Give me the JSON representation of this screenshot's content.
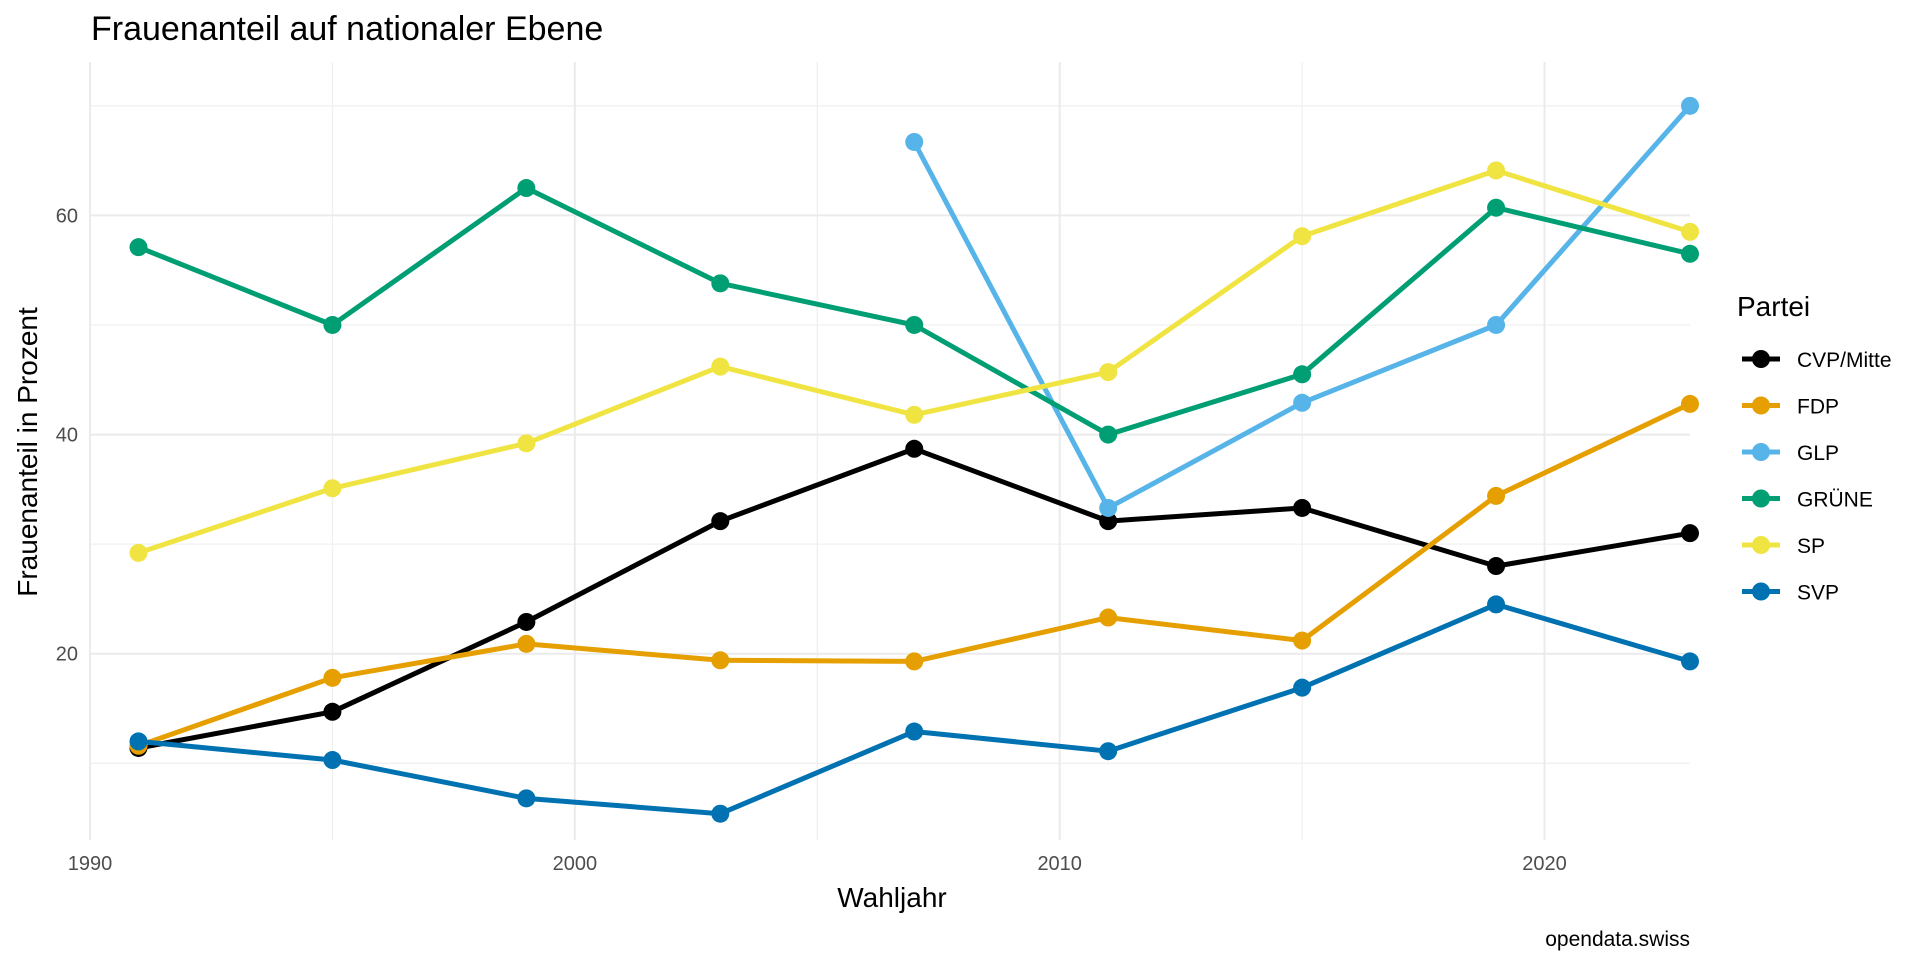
{
  "chart_data": {
    "type": "line",
    "title": "Frauenanteil auf nationaler Ebene",
    "xlabel": "Wahljahr",
    "ylabel": "Frauenanteil in Prozent",
    "caption": "opendata.swiss",
    "legend_title": "Partei",
    "legend_position": "right",
    "grid": true,
    "xlim": [
      1990,
      2023
    ],
    "ylim": [
      3,
      74
    ],
    "x_ticks": [
      1990,
      2000,
      2010,
      2020
    ],
    "y_ticks": [
      20,
      40,
      60
    ],
    "series": [
      {
        "name": "CVP/Mitte",
        "color": "#000000",
        "x": [
          1991,
          1995,
          1999,
          2003,
          2007,
          2011,
          2015,
          2019,
          2023
        ],
        "values": [
          11.4,
          14.7,
          22.9,
          32.1,
          38.7,
          32.1,
          33.3,
          28.0,
          31.0
        ]
      },
      {
        "name": "FDP",
        "color": "#E69F00",
        "x": [
          1991,
          1995,
          1999,
          2003,
          2007,
          2011,
          2015,
          2019,
          2023
        ],
        "values": [
          11.6,
          17.8,
          20.9,
          19.4,
          19.3,
          23.3,
          21.2,
          34.4,
          42.8
        ]
      },
      {
        "name": "GLP",
        "color": "#56B4E9",
        "x": [
          2007,
          2011,
          2015,
          2019,
          2023
        ],
        "values": [
          66.7,
          33.3,
          42.9,
          50.0,
          70.0
        ]
      },
      {
        "name": "GRÜNE",
        "color": "#009E73",
        "x": [
          1991,
          1995,
          1999,
          2003,
          2007,
          2011,
          2015,
          2019,
          2023
        ],
        "values": [
          57.1,
          50.0,
          62.5,
          53.8,
          50.0,
          40.0,
          45.5,
          60.7,
          56.5
        ]
      },
      {
        "name": "SP",
        "color": "#F0E442",
        "x": [
          1991,
          1995,
          1999,
          2003,
          2007,
          2011,
          2015,
          2019,
          2023
        ],
        "values": [
          29.2,
          35.1,
          39.2,
          46.2,
          41.8,
          45.7,
          58.1,
          64.1,
          58.5
        ]
      },
      {
        "name": "SVP",
        "color": "#0072B2",
        "x": [
          1991,
          1995,
          1999,
          2003,
          2007,
          2011,
          2015,
          2019,
          2023
        ],
        "values": [
          12.0,
          10.3,
          6.8,
          5.4,
          12.9,
          11.1,
          16.9,
          24.5,
          19.3
        ]
      }
    ]
  }
}
